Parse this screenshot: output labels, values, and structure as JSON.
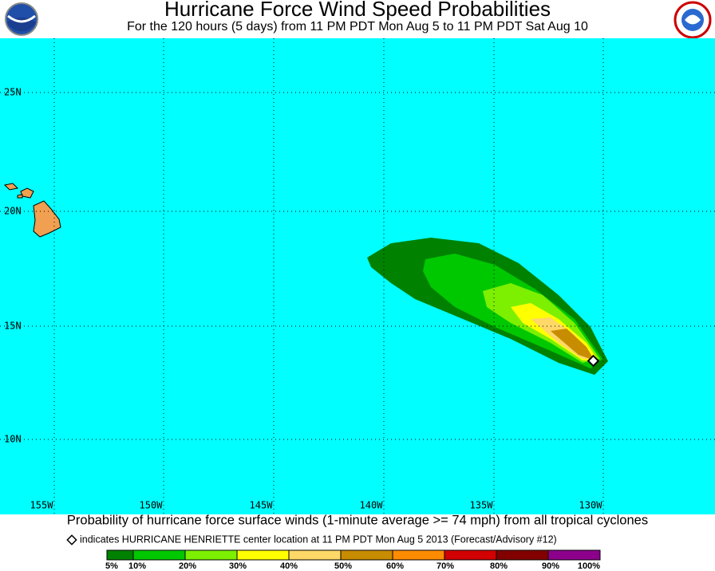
{
  "header": {
    "title": "Hurricane Force Wind Speed Probabilities",
    "subtitle": "For the 120 hours (5 days) from 11 PM PDT Mon Aug 5 to 11 PM PDT Sat Aug 10"
  },
  "map": {
    "lat_labels": [
      "25N",
      "20N",
      "15N",
      "10N"
    ],
    "lon_labels": [
      "155W",
      "150W",
      "145W",
      "140W",
      "135W",
      "130W"
    ]
  },
  "caption": "Probability of hurricane force surface winds (1-minute average >= 74 mph) from all tropical cyclones",
  "note": "indicates HURRICANE HENRIETTE center location at 11 PM PDT Mon Aug 5 2013 (Forecast/Advisory #12)",
  "legend": {
    "labels": [
      "5%",
      "10%",
      "20%",
      "30%",
      "40%",
      "50%",
      "60%",
      "70%",
      "80%",
      "90%",
      "100%"
    ],
    "colors": [
      "#008200",
      "#00c800",
      "#7cf000",
      "#ffff00",
      "#ffd868",
      "#c88c00",
      "#ff8c00",
      "#d20000",
      "#820000",
      "#8c008c"
    ]
  }
}
